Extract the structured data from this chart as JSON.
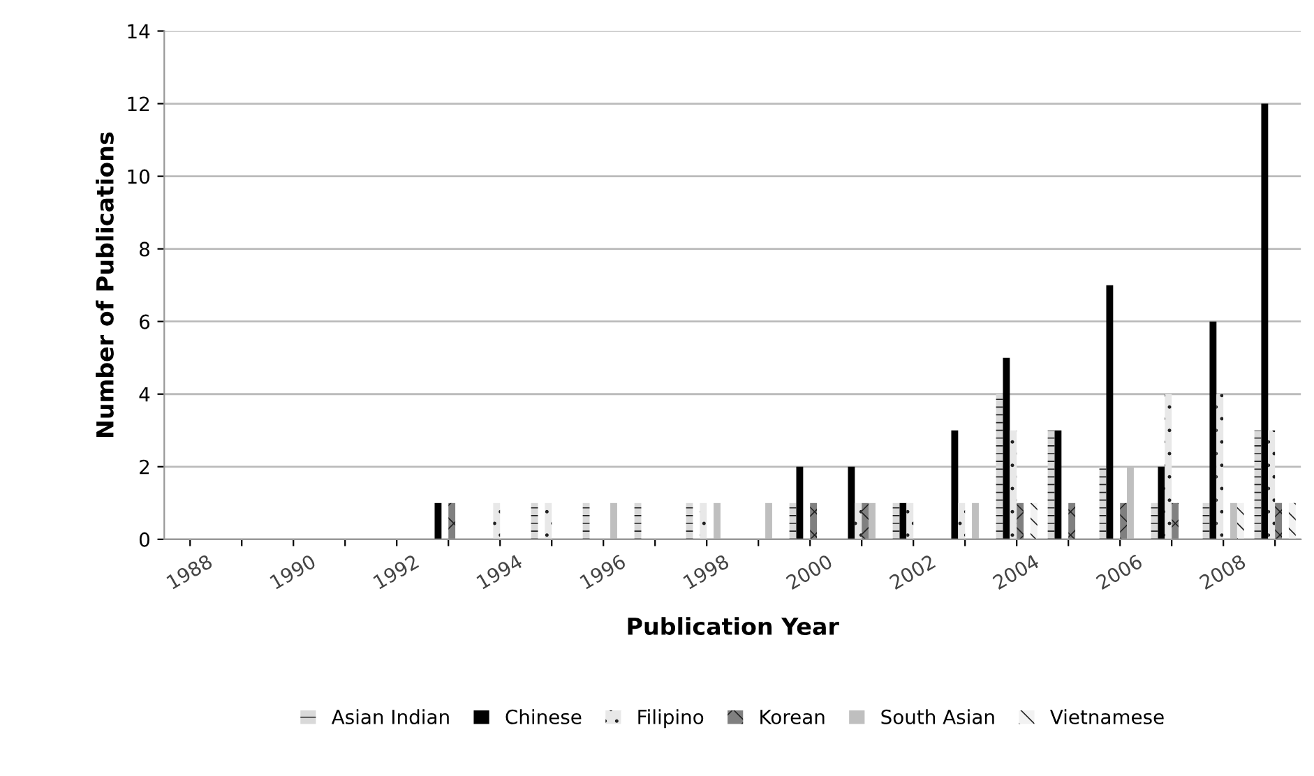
{
  "chart_data": {
    "type": "bar",
    "xlabel": "Publication Year",
    "ylabel": "Number of Publications",
    "categories": [
      "1988",
      null,
      "1990",
      null,
      "1992",
      null,
      "1994",
      null,
      "1996",
      null,
      "1998",
      null,
      "2000",
      null,
      "2002",
      null,
      "2004",
      null,
      "2006",
      null,
      "2008",
      null
    ],
    "series": [
      {
        "name": "Asian Indian",
        "color": "#d9d9d9",
        "values": [
          0,
          0,
          0,
          0,
          0,
          0,
          0,
          1,
          1,
          1,
          1,
          0,
          1,
          0,
          1,
          0,
          4,
          3,
          2,
          1,
          1,
          3
        ]
      },
      {
        "name": "Chinese",
        "color": "#000000",
        "values": [
          0,
          0,
          0,
          0,
          0,
          1,
          0,
          0,
          0,
          0,
          0,
          0,
          2,
          2,
          1,
          3,
          5,
          3,
          7,
          2,
          6,
          12
        ]
      },
      {
        "name": "Filipino",
        "color": "#e8e8e8",
        "values": [
          0,
          0,
          0,
          0,
          0,
          0,
          1,
          1,
          0,
          0,
          1,
          0,
          0,
          1,
          1,
          1,
          3,
          0,
          0,
          4,
          4,
          3
        ]
      },
      {
        "name": "Korean",
        "color": "#808080",
        "values": [
          0,
          0,
          0,
          0,
          0,
          1,
          0,
          0,
          0,
          0,
          0,
          0,
          1,
          1,
          0,
          0,
          1,
          1,
          1,
          1,
          0,
          1
        ]
      },
      {
        "name": "South Asian",
        "color": "#bfbfbf",
        "values": [
          0,
          0,
          0,
          0,
          0,
          0,
          0,
          0,
          1,
          0,
          1,
          1,
          0,
          1,
          0,
          1,
          0,
          0,
          2,
          0,
          1,
          0
        ]
      },
      {
        "name": "Vietnamese",
        "color": "#f2f2f2",
        "values": [
          0,
          0,
          0,
          0,
          0,
          0,
          0,
          0,
          0,
          0,
          0,
          0,
          0,
          0,
          0,
          0,
          1,
          0,
          0,
          0,
          1,
          1
        ]
      }
    ],
    "ylim": [
      0,
      14
    ],
    "yticks": [
      0,
      2,
      4,
      6,
      8,
      10,
      12,
      14
    ],
    "grid": "y",
    "legend": "bottom"
  }
}
